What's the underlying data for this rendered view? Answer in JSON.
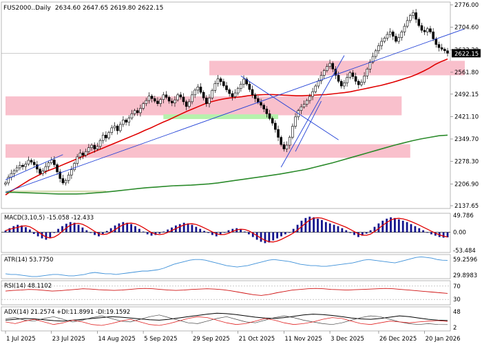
{
  "chart_data": {
    "type": "candlestick",
    "header": {
      "symbol": "FUS2000..Daily",
      "ohlc": "2634.60 2647.65 2619.80 2622.15"
    },
    "price_axis": {
      "ticks": [
        "2776.00",
        "2704.60",
        "2633.20",
        "2561.80",
        "2492.15",
        "2421.10",
        "2349.70",
        "2278.30",
        "2206.90",
        "2137.65"
      ],
      "tick_values": [
        2776.0,
        2704.6,
        2633.2,
        2561.8,
        2492.15,
        2421.1,
        2349.7,
        2278.3,
        2206.9,
        2137.65
      ],
      "current_label": "2622.15",
      "current_value": 2622.15
    },
    "x_axis": {
      "labels": [
        "1 Jul 2025",
        "23 Jul 2025",
        "14 Aug 2025",
        "5 Sep 2025",
        "29 Sep 2025",
        "21 Oct 2025",
        "11 Nov 2025",
        "3 Dec 2025",
        "26 Dec 2025",
        "20 Jan 2026"
      ],
      "label_bar_index": [
        0,
        16,
        32,
        48,
        65,
        81,
        97,
        113,
        130,
        146
      ]
    },
    "zones": [
      {
        "from_bar": 71,
        "to_bar": 160,
        "low": 2552,
        "high": 2598,
        "color": "#f9c0cc"
      },
      {
        "from_bar": 0,
        "to_bar": 138,
        "low": 2425,
        "high": 2485,
        "color": "#f9c0cc"
      },
      {
        "from_bar": 55,
        "to_bar": 95,
        "low": 2413,
        "high": 2428,
        "color": "#b6f2ac"
      },
      {
        "from_bar": 0,
        "to_bar": 141,
        "low": 2290,
        "high": 2333,
        "color": "#f9c0cc"
      },
      {
        "from_bar": 0,
        "to_bar": 35,
        "low": 2180,
        "high": 2186,
        "color": "#d9dfb8"
      }
    ],
    "trendlines": [
      {
        "from_bar": 0,
        "from_value": 2180,
        "to_bar": 160,
        "to_value": 2700
      },
      {
        "from_bar": 0,
        "from_value": 2220,
        "to_bar": 20,
        "to_value": 2300
      },
      {
        "from_bar": 82,
        "from_value": 2550,
        "to_bar": 116,
        "to_value": 2347
      },
      {
        "from_bar": 96,
        "from_value": 2260,
        "to_bar": 118,
        "to_value": 2615
      },
      {
        "from_bar": 101,
        "from_value": 2310,
        "to_bar": 110,
        "to_value": 2470
      }
    ],
    "candles_close": [
      2210,
      2228,
      2240,
      2249,
      2258,
      2266,
      2262,
      2270,
      2282,
      2276,
      2268,
      2254,
      2240,
      2248,
      2262,
      2274,
      2283,
      2268,
      2245,
      2224,
      2210,
      2218,
      2235,
      2252,
      2272,
      2293,
      2305,
      2298,
      2310,
      2322,
      2330,
      2318,
      2326,
      2345,
      2362,
      2353,
      2370,
      2385,
      2391,
      2376,
      2396,
      2410,
      2403,
      2416,
      2430,
      2440,
      2433,
      2447,
      2462,
      2472,
      2486,
      2478,
      2470,
      2462,
      2475,
      2490,
      2482,
      2470,
      2464,
      2474,
      2490,
      2483,
      2468,
      2453,
      2468,
      2490,
      2505,
      2515,
      2498,
      2480,
      2462,
      2480,
      2504,
      2526,
      2541,
      2532,
      2519,
      2506,
      2494,
      2484,
      2496,
      2510,
      2524,
      2540,
      2524,
      2507,
      2490,
      2478,
      2466,
      2457,
      2445,
      2430,
      2415,
      2400,
      2380,
      2355,
      2332,
      2318,
      2330,
      2355,
      2390,
      2420,
      2440,
      2452,
      2460,
      2472,
      2485,
      2500,
      2518,
      2534,
      2552,
      2567,
      2580,
      2590,
      2572,
      2552,
      2533,
      2518,
      2528,
      2545,
      2560,
      2548,
      2533,
      2522,
      2530,
      2550,
      2572,
      2594,
      2612,
      2630,
      2646,
      2660,
      2670,
      2682,
      2690,
      2676,
      2660,
      2672,
      2690,
      2708,
      2726,
      2742,
      2751,
      2730,
      2710,
      2695,
      2690,
      2700,
      2690,
      2668,
      2650,
      2640,
      2635,
      2630,
      2622.15
    ],
    "moving_averages": [
      {
        "name": "MA-short",
        "color": "#e00000",
        "values": [
          2172,
          2185,
          2196,
          2208,
          2220,
          2230,
          2240,
          2249,
          2256,
          2264,
          2272,
          2280,
          2288,
          2296,
          2304,
          2312,
          2320,
          2328,
          2336,
          2344,
          2352,
          2360,
          2368,
          2377,
          2385,
          2394,
          2403,
          2411,
          2420,
          2429,
          2438,
          2446,
          2454,
          2462,
          2468,
          2473,
          2477,
          2480,
          2482,
          2484,
          2487,
          2489,
          2490,
          2491,
          2491,
          2490,
          2489,
          2488,
          2487,
          2487,
          2488,
          2489,
          2490,
          2491,
          2493,
          2495,
          2497,
          2500,
          2504,
          2508,
          2512,
          2516,
          2520,
          2525,
          2530,
          2536,
          2542,
          2548,
          2556,
          2565,
          2575,
          2587,
          2596,
          2604
        ]
      },
      {
        "name": "MA-long",
        "color": "#2a8a2a",
        "values": [
          2180,
          2180,
          2179,
          2178,
          2177,
          2176,
          2175,
          2175,
          2175,
          2176,
          2178,
          2180,
          2183,
          2186,
          2189,
          2192,
          2195,
          2197,
          2199,
          2201,
          2202,
          2203,
          2205,
          2207,
          2210,
          2214,
          2218,
          2222,
          2226,
          2230,
          2234,
          2238,
          2243,
          2248,
          2253,
          2260,
          2267,
          2274,
          2282,
          2290,
          2298,
          2306,
          2314,
          2322,
          2330,
          2337,
          2344,
          2350,
          2355,
          2360,
          2362
        ]
      }
    ],
    "macd": {
      "label": "MACD(3,10,5) -15.058 -12.433",
      "ticks": [
        "49.786",
        "0.00",
        "-53.484"
      ],
      "values": [
        5,
        12,
        18,
        22,
        20,
        15,
        8,
        -5,
        -12,
        -18,
        -22,
        -15,
        -2,
        10,
        18,
        25,
        30,
        28,
        22,
        14,
        6,
        -2,
        -8,
        -12,
        -5,
        4,
        12,
        20,
        26,
        30,
        28,
        24,
        18,
        10,
        2,
        -6,
        -10,
        -8,
        -4,
        2,
        8,
        14,
        20,
        24,
        28,
        26,
        22,
        16,
        10,
        4,
        -2,
        -8,
        -12,
        -6,
        0,
        6,
        10,
        12,
        8,
        2,
        -6,
        -14,
        -22,
        -28,
        -32,
        -30,
        -24,
        -18,
        -12,
        -6,
        0,
        10,
        22,
        34,
        42,
        46,
        44,
        40,
        36,
        30,
        26,
        22,
        18,
        12,
        6,
        -2,
        -8,
        -14,
        -10,
        -4,
        6,
        16,
        26,
        34,
        40,
        44,
        42,
        38,
        34,
        30,
        24,
        18,
        12,
        6,
        0,
        -6,
        -10,
        -14,
        -16,
        -15
      ]
    },
    "atr": {
      "label": "ATR(14) 53.7750",
      "ticks": [
        "59.2596",
        "29.8983"
      ],
      "values": [
        34,
        33,
        33,
        32,
        31,
        30,
        30,
        31,
        32,
        33,
        33,
        32,
        31,
        31,
        32,
        33,
        35,
        36,
        35,
        34,
        34,
        33,
        34,
        35,
        36,
        37,
        38,
        38,
        39,
        40,
        42,
        45,
        48,
        50,
        52,
        54,
        55,
        55,
        54,
        52,
        50,
        48,
        46,
        45,
        44,
        45,
        46,
        48,
        50,
        52,
        54,
        55,
        54,
        53,
        52,
        50,
        48,
        47,
        46,
        46,
        45,
        45,
        46,
        47,
        48,
        49,
        50,
        52,
        54,
        55,
        54,
        53,
        52,
        51,
        50,
        52,
        54,
        56,
        58,
        59,
        58,
        57,
        55,
        54,
        53.775
      ]
    },
    "rsi": {
      "label": "RSI(14) 48.1102",
      "ticks": [
        "70",
        "30"
      ],
      "values": [
        55,
        57,
        58,
        60,
        59,
        57,
        55,
        56,
        58,
        60,
        62,
        61,
        59,
        58,
        57,
        58,
        60,
        62,
        63,
        62,
        60,
        58,
        57,
        58,
        60,
        61,
        62,
        61,
        59,
        56,
        52,
        48,
        44,
        42,
        45,
        50,
        54,
        58,
        60,
        62,
        63,
        62,
        60,
        59,
        58,
        59,
        60,
        61,
        62,
        63,
        62,
        60,
        58,
        56,
        54,
        52,
        50,
        48.1102
      ]
    },
    "adx": {
      "label": "ADX(14) 21.2574 +DI:11.8991 -DI:19.1592",
      "ticks": [
        "48",
        "2"
      ],
      "adx_values": [
        22,
        24,
        26,
        25,
        23,
        21,
        20,
        22,
        24,
        26,
        28,
        30,
        29,
        27,
        25,
        23,
        22,
        24,
        27,
        30,
        33,
        36,
        38,
        37,
        35,
        32,
        29,
        27,
        26,
        28,
        31,
        34,
        36,
        35,
        33,
        30,
        27,
        25,
        24,
        26,
        29,
        32,
        30,
        27,
        24,
        22,
        21.26
      ],
      "plus_di_values": [
        25,
        28,
        22,
        20,
        26,
        30,
        24,
        18,
        22,
        28,
        32,
        26,
        20,
        18,
        24,
        30,
        34,
        28,
        22,
        16,
        14,
        20,
        26,
        30,
        24,
        18,
        16,
        22,
        28,
        32,
        28,
        22,
        18,
        14,
        12,
        16,
        22,
        28,
        32,
        30,
        24,
        18,
        14,
        12,
        14,
        12,
        11.9
      ],
      "minus_di_values": [
        18,
        14,
        20,
        24,
        18,
        12,
        16,
        22,
        18,
        12,
        10,
        14,
        20,
        24,
        18,
        12,
        10,
        14,
        20,
        26,
        30,
        28,
        22,
        16,
        12,
        14,
        20,
        26,
        22,
        16,
        12,
        14,
        18,
        24,
        28,
        26,
        20,
        14,
        12,
        16,
        20,
        18,
        16,
        18,
        20,
        21,
        19.16
      ]
    }
  }
}
